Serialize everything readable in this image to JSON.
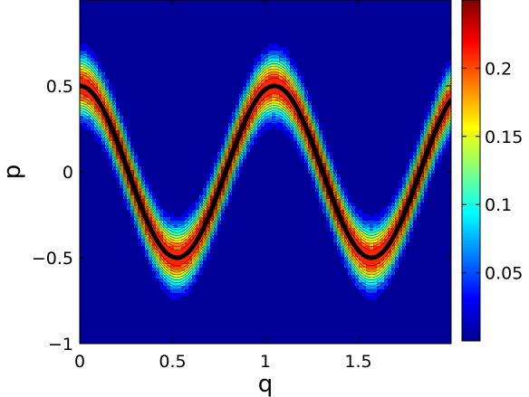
{
  "chart_data": {
    "type": "heatmap",
    "title": "",
    "xlabel": "q",
    "ylabel": "p",
    "xlim": [
      0,
      2
    ],
    "ylim": [
      -1,
      1
    ],
    "x_ticks": [
      {
        "value": 0,
        "label": "0"
      },
      {
        "value": 0.5,
        "label": "0.5"
      },
      {
        "value": 1,
        "label": "1"
      },
      {
        "value": 1.5,
        "label": "1.5"
      }
    ],
    "y_ticks": [
      {
        "value": 0.5,
        "label": "0.5"
      },
      {
        "value": 0,
        "label": "0"
      },
      {
        "value": -0.5,
        "label": "−0.5"
      },
      {
        "value": -1,
        "label": "−1"
      }
    ],
    "colorbar": {
      "range": [
        0,
        0.25
      ],
      "colormap": "jet",
      "ticks": [
        {
          "value": 0.05,
          "label": "0.05"
        },
        {
          "value": 0.1,
          "label": "0.1"
        },
        {
          "value": 0.15,
          "label": "0.15"
        },
        {
          "value": 0.2,
          "label": "0.2"
        }
      ]
    },
    "field": {
      "description_curve": "p = 0.5*cos(6q)",
      "curve_amplitude": 0.5,
      "curve_frequency": 6,
      "peak_value": 0.24,
      "band_sigma": 0.11,
      "contour_levels": [
        0.02,
        0.04,
        0.06,
        0.08,
        0.1,
        0.12,
        0.14,
        0.16,
        0.18,
        0.2,
        0.22
      ],
      "colors": {
        "line": "#000000",
        "background": "#00008f"
      }
    }
  }
}
